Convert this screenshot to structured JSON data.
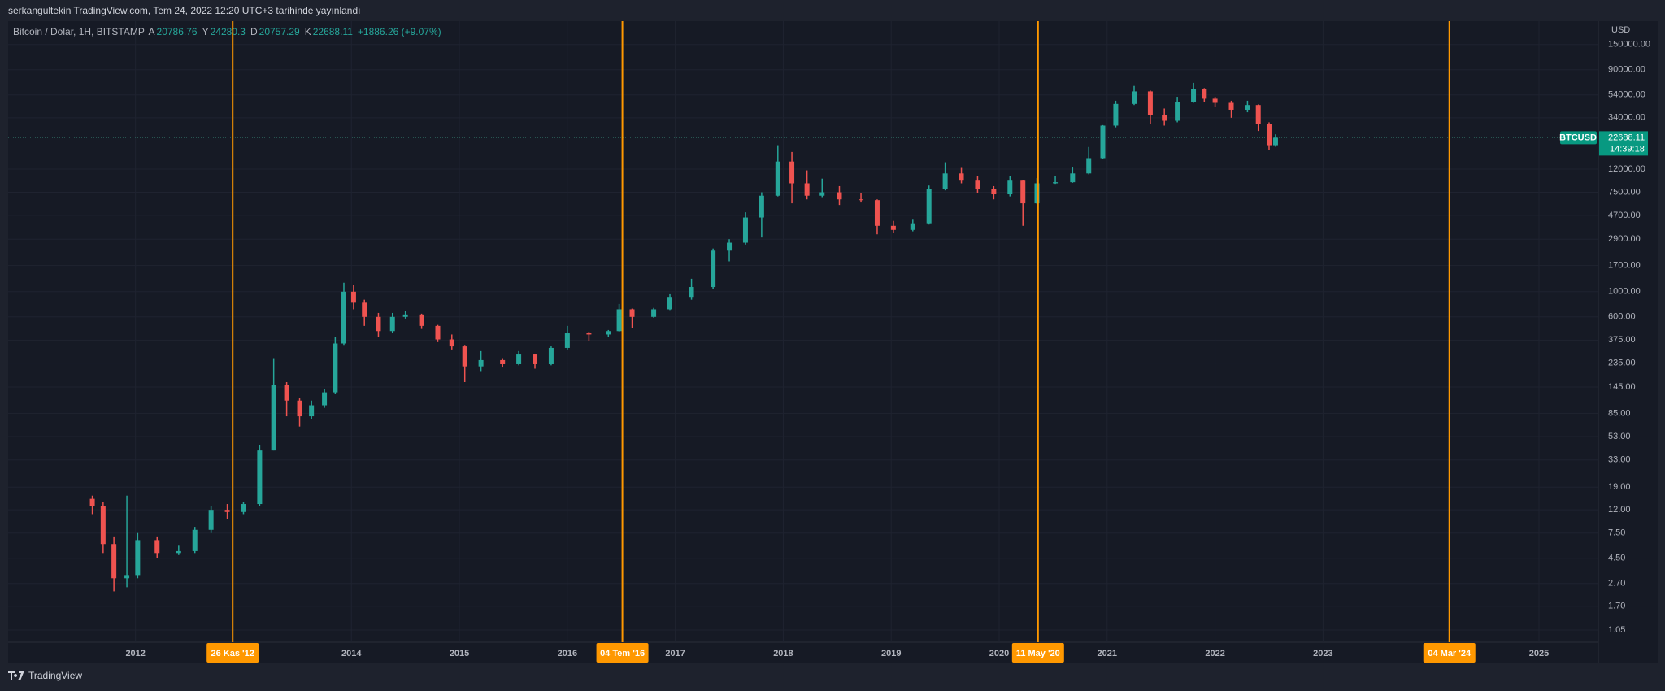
{
  "header": {
    "published": "serkangultekin TradingView.com, Tem 24, 2022 12:20 UTC+3 tarihinde yayınlandı",
    "symbol": "Bitcoin / Dolar, 1H, BITSTAMP",
    "ohlc": [
      {
        "label": "A",
        "value": 20786.76
      },
      {
        "label": "Y",
        "value": 24280.3
      },
      {
        "label": "D",
        "value": 20757.29
      },
      {
        "label": "K",
        "value": 22688.11
      }
    ],
    "change": "+1886.26 (+9.07%)"
  },
  "footer": "TradingView",
  "chart_data": {
    "type": "candlestick",
    "currency": "USD",
    "log_scale": true,
    "grid": true,
    "up_color": "#26a69a",
    "down_color": "#ef5350",
    "xlim": [
      2010.82,
      2025.55
    ],
    "ylim": [
      0.82,
      241000
    ],
    "xticks": [
      2012,
      2014,
      2015,
      2016,
      2017,
      2018,
      2019,
      2020,
      2021,
      2022,
      2023,
      2025
    ],
    "yticks": [
      {
        "value": 150000,
        "label": "150000.00"
      },
      {
        "value": 90000,
        "label": "90000.00"
      },
      {
        "value": 54000,
        "label": "54000.00"
      },
      {
        "value": 34000,
        "label": "34000.00"
      },
      {
        "value": 12000,
        "label": "12000.00"
      },
      {
        "value": 7500,
        "label": "7500.00"
      },
      {
        "value": 4700,
        "label": "4700.00"
      },
      {
        "value": 2900,
        "label": "2900.00"
      },
      {
        "value": 1700,
        "label": "1700.00"
      },
      {
        "value": 1000,
        "label": "1000.00"
      },
      {
        "value": 600,
        "label": "600.00"
      },
      {
        "value": 375,
        "label": "375.00"
      },
      {
        "value": 235,
        "label": "235.00"
      },
      {
        "value": 145,
        "label": "145.00"
      },
      {
        "value": 85,
        "label": "85.00"
      },
      {
        "value": 53,
        "label": "53.00"
      },
      {
        "value": 33,
        "label": "33.00"
      },
      {
        "value": 19,
        "label": "19.00"
      },
      {
        "value": 12,
        "label": "12.00"
      },
      {
        "value": 7.5,
        "label": "7.50"
      },
      {
        "value": 4.5,
        "label": "4.50"
      },
      {
        "value": 2.7,
        "label": "2.70"
      },
      {
        "value": 1.7,
        "label": "1.70"
      },
      {
        "value": 1.05,
        "label": "1.05"
      }
    ],
    "events": [
      {
        "x": 2012.9,
        "label": "26 Kas '12"
      },
      {
        "x": 2016.51,
        "label": "04 Tem '16"
      },
      {
        "x": 2020.36,
        "label": "11 May '20"
      },
      {
        "x": 2024.17,
        "label": "04 Mar '24"
      }
    ],
    "event_color": "#ff9800",
    "price_line": {
      "name": "BTCUSD",
      "value": 22688.11,
      "countdown": "14:39:18",
      "color": "#089981"
    },
    "candles": [
      {
        "x": 2011.6,
        "o": 15,
        "h": 16,
        "l": 11,
        "c": 13
      },
      {
        "x": 2011.7,
        "o": 13,
        "h": 14,
        "l": 5,
        "c": 6
      },
      {
        "x": 2011.8,
        "o": 6,
        "h": 7,
        "l": 2.3,
        "c": 3
      },
      {
        "x": 2011.92,
        "o": 3,
        "h": 16,
        "l": 2.5,
        "c": 3.2
      },
      {
        "x": 2012.02,
        "o": 3.2,
        "h": 7.5,
        "l": 3,
        "c": 6.5
      },
      {
        "x": 2012.2,
        "o": 6.5,
        "h": 7,
        "l": 4.5,
        "c": 5
      },
      {
        "x": 2012.4,
        "o": 5,
        "h": 5.8,
        "l": 4.8,
        "c": 5.2
      },
      {
        "x": 2012.55,
        "o": 5.2,
        "h": 8.5,
        "l": 5,
        "c": 8
      },
      {
        "x": 2012.7,
        "o": 8,
        "h": 13,
        "l": 7.5,
        "c": 12
      },
      {
        "x": 2012.85,
        "o": 12,
        "h": 13.5,
        "l": 10,
        "c": 11.5
      },
      {
        "x": 2013.0,
        "o": 11.5,
        "h": 14,
        "l": 11,
        "c": 13.5
      },
      {
        "x": 2013.15,
        "o": 13.5,
        "h": 45,
        "l": 13,
        "c": 40
      },
      {
        "x": 2013.28,
        "o": 40,
        "h": 260,
        "l": 40,
        "c": 150
      },
      {
        "x": 2013.4,
        "o": 150,
        "h": 160,
        "l": 80,
        "c": 110
      },
      {
        "x": 2013.52,
        "o": 110,
        "h": 115,
        "l": 65,
        "c": 80
      },
      {
        "x": 2013.63,
        "o": 80,
        "h": 110,
        "l": 75,
        "c": 100
      },
      {
        "x": 2013.75,
        "o": 100,
        "h": 140,
        "l": 95,
        "c": 130
      },
      {
        "x": 2013.85,
        "o": 130,
        "h": 400,
        "l": 125,
        "c": 350
      },
      {
        "x": 2013.93,
        "o": 350,
        "h": 1200,
        "l": 340,
        "c": 1000
      },
      {
        "x": 2014.02,
        "o": 1000,
        "h": 1150,
        "l": 700,
        "c": 800
      },
      {
        "x": 2014.12,
        "o": 800,
        "h": 850,
        "l": 500,
        "c": 600
      },
      {
        "x": 2014.25,
        "o": 600,
        "h": 650,
        "l": 400,
        "c": 450
      },
      {
        "x": 2014.38,
        "o": 450,
        "h": 650,
        "l": 430,
        "c": 600
      },
      {
        "x": 2014.5,
        "o": 600,
        "h": 680,
        "l": 580,
        "c": 630
      },
      {
        "x": 2014.65,
        "o": 630,
        "h": 640,
        "l": 470,
        "c": 500
      },
      {
        "x": 2014.8,
        "o": 500,
        "h": 510,
        "l": 360,
        "c": 380
      },
      {
        "x": 2014.93,
        "o": 380,
        "h": 420,
        "l": 310,
        "c": 330
      },
      {
        "x": 2015.05,
        "o": 330,
        "h": 340,
        "l": 160,
        "c": 220
      },
      {
        "x": 2015.2,
        "o": 220,
        "h": 300,
        "l": 200,
        "c": 250
      },
      {
        "x": 2015.4,
        "o": 250,
        "h": 260,
        "l": 215,
        "c": 230
      },
      {
        "x": 2015.55,
        "o": 230,
        "h": 300,
        "l": 225,
        "c": 280
      },
      {
        "x": 2015.7,
        "o": 280,
        "h": 285,
        "l": 210,
        "c": 230
      },
      {
        "x": 2015.85,
        "o": 230,
        "h": 330,
        "l": 225,
        "c": 320
      },
      {
        "x": 2016.0,
        "o": 320,
        "h": 500,
        "l": 310,
        "c": 430
      },
      {
        "x": 2016.2,
        "o": 430,
        "h": 440,
        "l": 370,
        "c": 420
      },
      {
        "x": 2016.38,
        "o": 420,
        "h": 460,
        "l": 400,
        "c": 450
      },
      {
        "x": 2016.48,
        "o": 450,
        "h": 780,
        "l": 440,
        "c": 700
      },
      {
        "x": 2016.6,
        "o": 700,
        "h": 710,
        "l": 480,
        "c": 600
      },
      {
        "x": 2016.8,
        "o": 600,
        "h": 720,
        "l": 590,
        "c": 700
      },
      {
        "x": 2016.95,
        "o": 700,
        "h": 950,
        "l": 690,
        "c": 900
      },
      {
        "x": 2017.15,
        "o": 900,
        "h": 1300,
        "l": 850,
        "c": 1100
      },
      {
        "x": 2017.35,
        "o": 1100,
        "h": 2400,
        "l": 1050,
        "c": 2300
      },
      {
        "x": 2017.5,
        "o": 2300,
        "h": 2900,
        "l": 1850,
        "c": 2700
      },
      {
        "x": 2017.65,
        "o": 2700,
        "h": 5000,
        "l": 2600,
        "c": 4500
      },
      {
        "x": 2017.8,
        "o": 4500,
        "h": 7500,
        "l": 3000,
        "c": 7000
      },
      {
        "x": 2017.95,
        "o": 7000,
        "h": 19500,
        "l": 6900,
        "c": 14000
      },
      {
        "x": 2018.08,
        "o": 14000,
        "h": 17000,
        "l": 6000,
        "c": 9000
      },
      {
        "x": 2018.22,
        "o": 9000,
        "h": 11700,
        "l": 6500,
        "c": 7000
      },
      {
        "x": 2018.36,
        "o": 7000,
        "h": 9900,
        "l": 6800,
        "c": 7500
      },
      {
        "x": 2018.52,
        "o": 7500,
        "h": 8500,
        "l": 5800,
        "c": 6500
      },
      {
        "x": 2018.72,
        "o": 6500,
        "h": 7400,
        "l": 6100,
        "c": 6400
      },
      {
        "x": 2018.87,
        "o": 6400,
        "h": 6500,
        "l": 3200,
        "c": 3800
      },
      {
        "x": 2019.02,
        "o": 3800,
        "h": 4200,
        "l": 3300,
        "c": 3500
      },
      {
        "x": 2019.2,
        "o": 3500,
        "h": 4300,
        "l": 3400,
        "c": 4000
      },
      {
        "x": 2019.35,
        "o": 4000,
        "h": 8600,
        "l": 3900,
        "c": 8000
      },
      {
        "x": 2019.5,
        "o": 8000,
        "h": 13800,
        "l": 7800,
        "c": 11000
      },
      {
        "x": 2019.65,
        "o": 11000,
        "h": 12300,
        "l": 9000,
        "c": 9500
      },
      {
        "x": 2019.8,
        "o": 9500,
        "h": 10500,
        "l": 7400,
        "c": 8000
      },
      {
        "x": 2019.95,
        "o": 8000,
        "h": 8500,
        "l": 6500,
        "c": 7200
      },
      {
        "x": 2020.1,
        "o": 7200,
        "h": 10500,
        "l": 6900,
        "c": 9500
      },
      {
        "x": 2020.22,
        "o": 9500,
        "h": 9600,
        "l": 3800,
        "c": 6000
      },
      {
        "x": 2020.35,
        "o": 6000,
        "h": 10000,
        "l": 5900,
        "c": 9000
      },
      {
        "x": 2020.52,
        "o": 9000,
        "h": 10400,
        "l": 8900,
        "c": 9200
      },
      {
        "x": 2020.68,
        "o": 9200,
        "h": 12400,
        "l": 9100,
        "c": 11000
      },
      {
        "x": 2020.83,
        "o": 11000,
        "h": 18800,
        "l": 10800,
        "c": 15000
      },
      {
        "x": 2020.96,
        "o": 15000,
        "h": 29300,
        "l": 14800,
        "c": 29000
      },
      {
        "x": 2021.08,
        "o": 29000,
        "h": 48000,
        "l": 28000,
        "c": 45000
      },
      {
        "x": 2021.25,
        "o": 45000,
        "h": 64800,
        "l": 44000,
        "c": 58000
      },
      {
        "x": 2021.4,
        "o": 58000,
        "h": 59000,
        "l": 30000,
        "c": 36000
      },
      {
        "x": 2021.53,
        "o": 36000,
        "h": 41000,
        "l": 29000,
        "c": 32000
      },
      {
        "x": 2021.65,
        "o": 32000,
        "h": 52000,
        "l": 31000,
        "c": 47000
      },
      {
        "x": 2021.8,
        "o": 47000,
        "h": 69000,
        "l": 46000,
        "c": 61000
      },
      {
        "x": 2021.9,
        "o": 61000,
        "h": 62000,
        "l": 47000,
        "c": 50000
      },
      {
        "x": 2022.0,
        "o": 50000,
        "h": 52000,
        "l": 42000,
        "c": 46000
      },
      {
        "x": 2022.15,
        "o": 46000,
        "h": 48000,
        "l": 34000,
        "c": 40000
      },
      {
        "x": 2022.3,
        "o": 40000,
        "h": 48000,
        "l": 38000,
        "c": 44000
      },
      {
        "x": 2022.4,
        "o": 44000,
        "h": 44500,
        "l": 26000,
        "c": 30000
      },
      {
        "x": 2022.5,
        "o": 30000,
        "h": 31000,
        "l": 17600,
        "c": 19500
      },
      {
        "x": 2022.56,
        "o": 19500,
        "h": 24300,
        "l": 18900,
        "c": 22688.11
      }
    ]
  }
}
